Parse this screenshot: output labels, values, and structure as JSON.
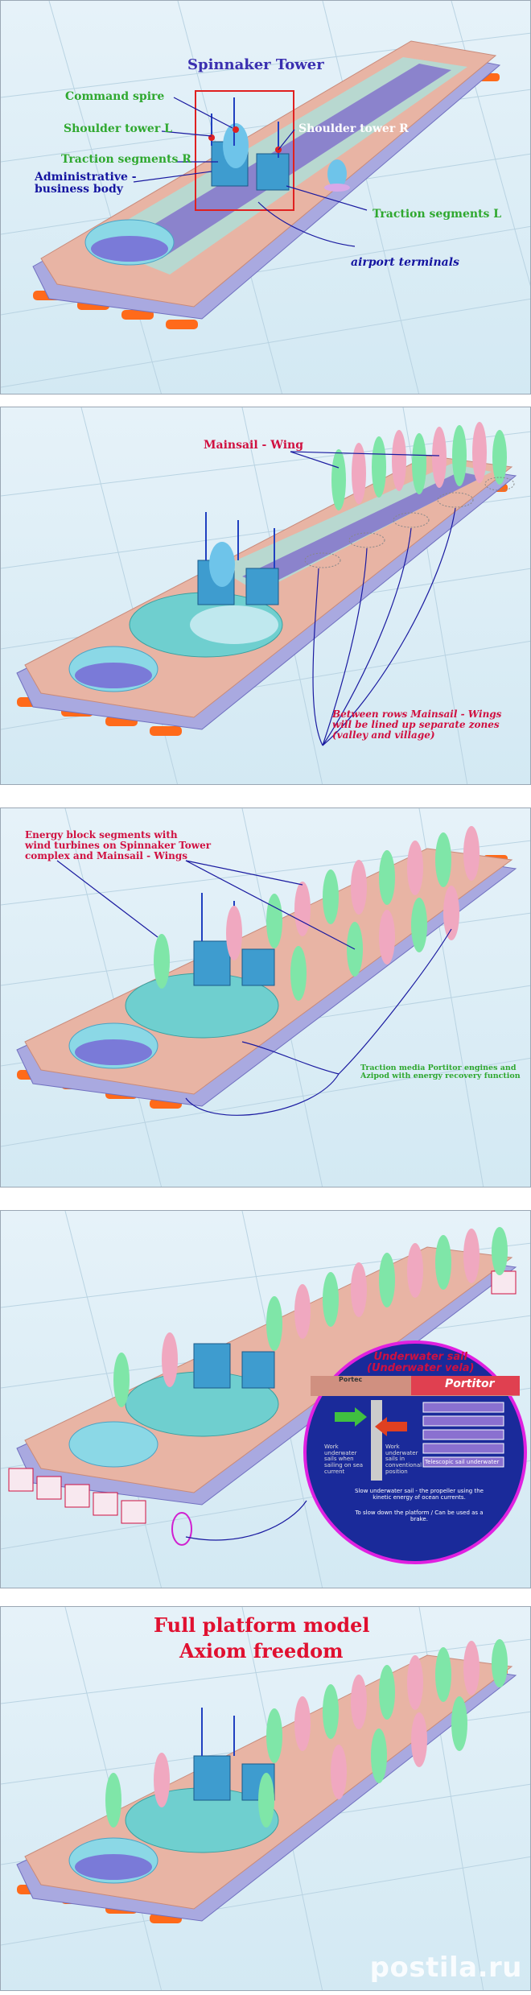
{
  "panel1": {
    "title": "Spinnaker Tower",
    "labels": {
      "command_spire": "Command spire",
      "shoulder_l": "Shoulder tower L",
      "shoulder_r": "Shoulder tower R",
      "traction_r": "Traction segments R",
      "admin": "Administrative -\nbusiness body",
      "traction_l": "Traction segments L",
      "airport": "airport terminals"
    }
  },
  "panel2": {
    "mainsail": "Mainsail - Wing",
    "between": "Between rows Mainsail - Wings\nwill be lined up separate zones\n(valley and village)"
  },
  "panel3": {
    "energy": "Energy block segments with\nwind turbines on Spinnaker Tower\ncomplex and Mainsail - Wings",
    "traction": "Traction media Portitor engines and\nAzipod with energy recovery function"
  },
  "panel4": {
    "inset_title": "Underwater sail\n(Underwater vela)",
    "portitor": "Portitor",
    "portec": "Portec",
    "telescopic": "Telescopic sail underwater",
    "note_left": "Work underwater sails when sailing on sea current",
    "note_mid": "Work underwater sails in conventional position",
    "note_bottom1": "Slow underwater sail - the propeller using the kinetic energy of ocean currents.",
    "note_bottom2": "To slow down the platform / Can be used as a brake."
  },
  "panel5": {
    "title_line1": "Full platform model",
    "title_line2": "Axiom freedom"
  },
  "watermark": "postila.ru",
  "colors": {
    "title_blue": "#3a2fb0",
    "label_green": "#2fa82f",
    "label_blue": "#1414a0",
    "label_white": "#ffffff",
    "label_red": "#d01040",
    "deck_pink": "#e8b4a4",
    "hull_blue": "#8a8ad8",
    "pontoon_orange": "#ff6a1a",
    "spire_red": "#e02020"
  }
}
